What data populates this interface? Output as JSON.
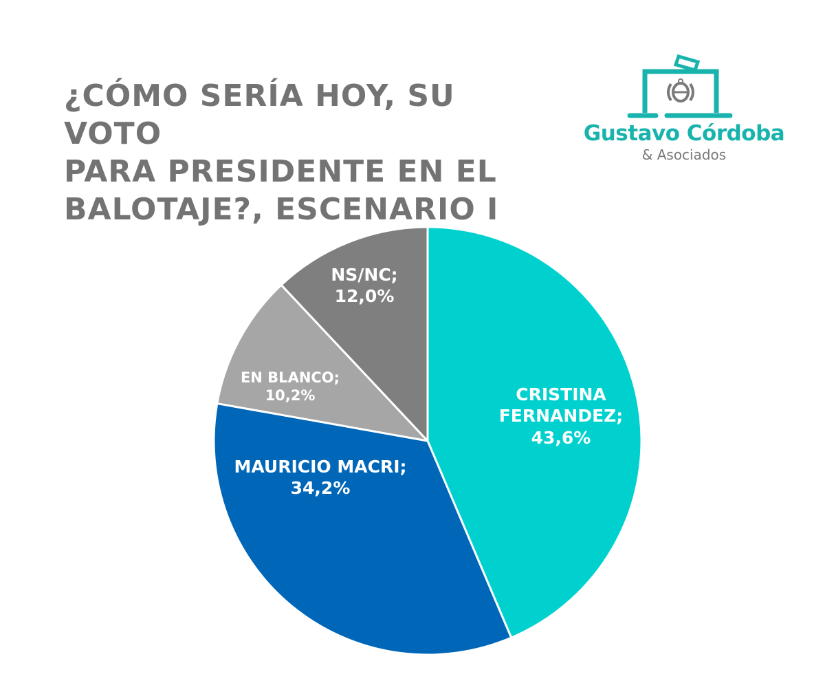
{
  "title": {
    "lines": [
      "¿CÓMO SERÍA HOY, SU VOTO",
      "PARA PRESIDENTE EN EL",
      "BALOTAJE?, ESCENARIO I"
    ]
  },
  "logo": {
    "icon": "ballot-box-icon",
    "name": "Gustavo Córdoba",
    "subtitle": "& Asociados",
    "color": "#19b3ad"
  },
  "chart_data": {
    "type": "pie",
    "title": "¿CÓMO SERÍA HOY, SU VOTO PARA PRESIDENTE EN EL BALOTAJE?, ESCENARIO I",
    "start_angle": "12 o'clock",
    "direction": "clockwise",
    "slices": [
      {
        "label": "CRISTINA FERNANDEZ",
        "value": 43.6,
        "display": "43,6%",
        "color": "#00d1cf"
      },
      {
        "label": "MAURICIO MACRI",
        "value": 34.2,
        "display": "34,2%",
        "color": "#0066b8"
      },
      {
        "label": "EN BLANCO",
        "value": 10.2,
        "display": "10,2%",
        "color": "#a6a6a6"
      },
      {
        "label": "NS/NC",
        "value": 12.0,
        "display": "12,0%",
        "color": "#7f7f7f"
      }
    ],
    "labels": {
      "cristina": {
        "line1": "CRISTINA",
        "line2": "FERNANDEZ;",
        "line3": "43,6%"
      },
      "macri": {
        "line1": "MAURICIO MACRI;",
        "line2": "34,2%"
      },
      "blanco": {
        "line1": "EN BLANCO;",
        "line2": "10,2%"
      },
      "nsnc": {
        "line1": "NS/NC;",
        "line2": "12,0%"
      }
    }
  }
}
